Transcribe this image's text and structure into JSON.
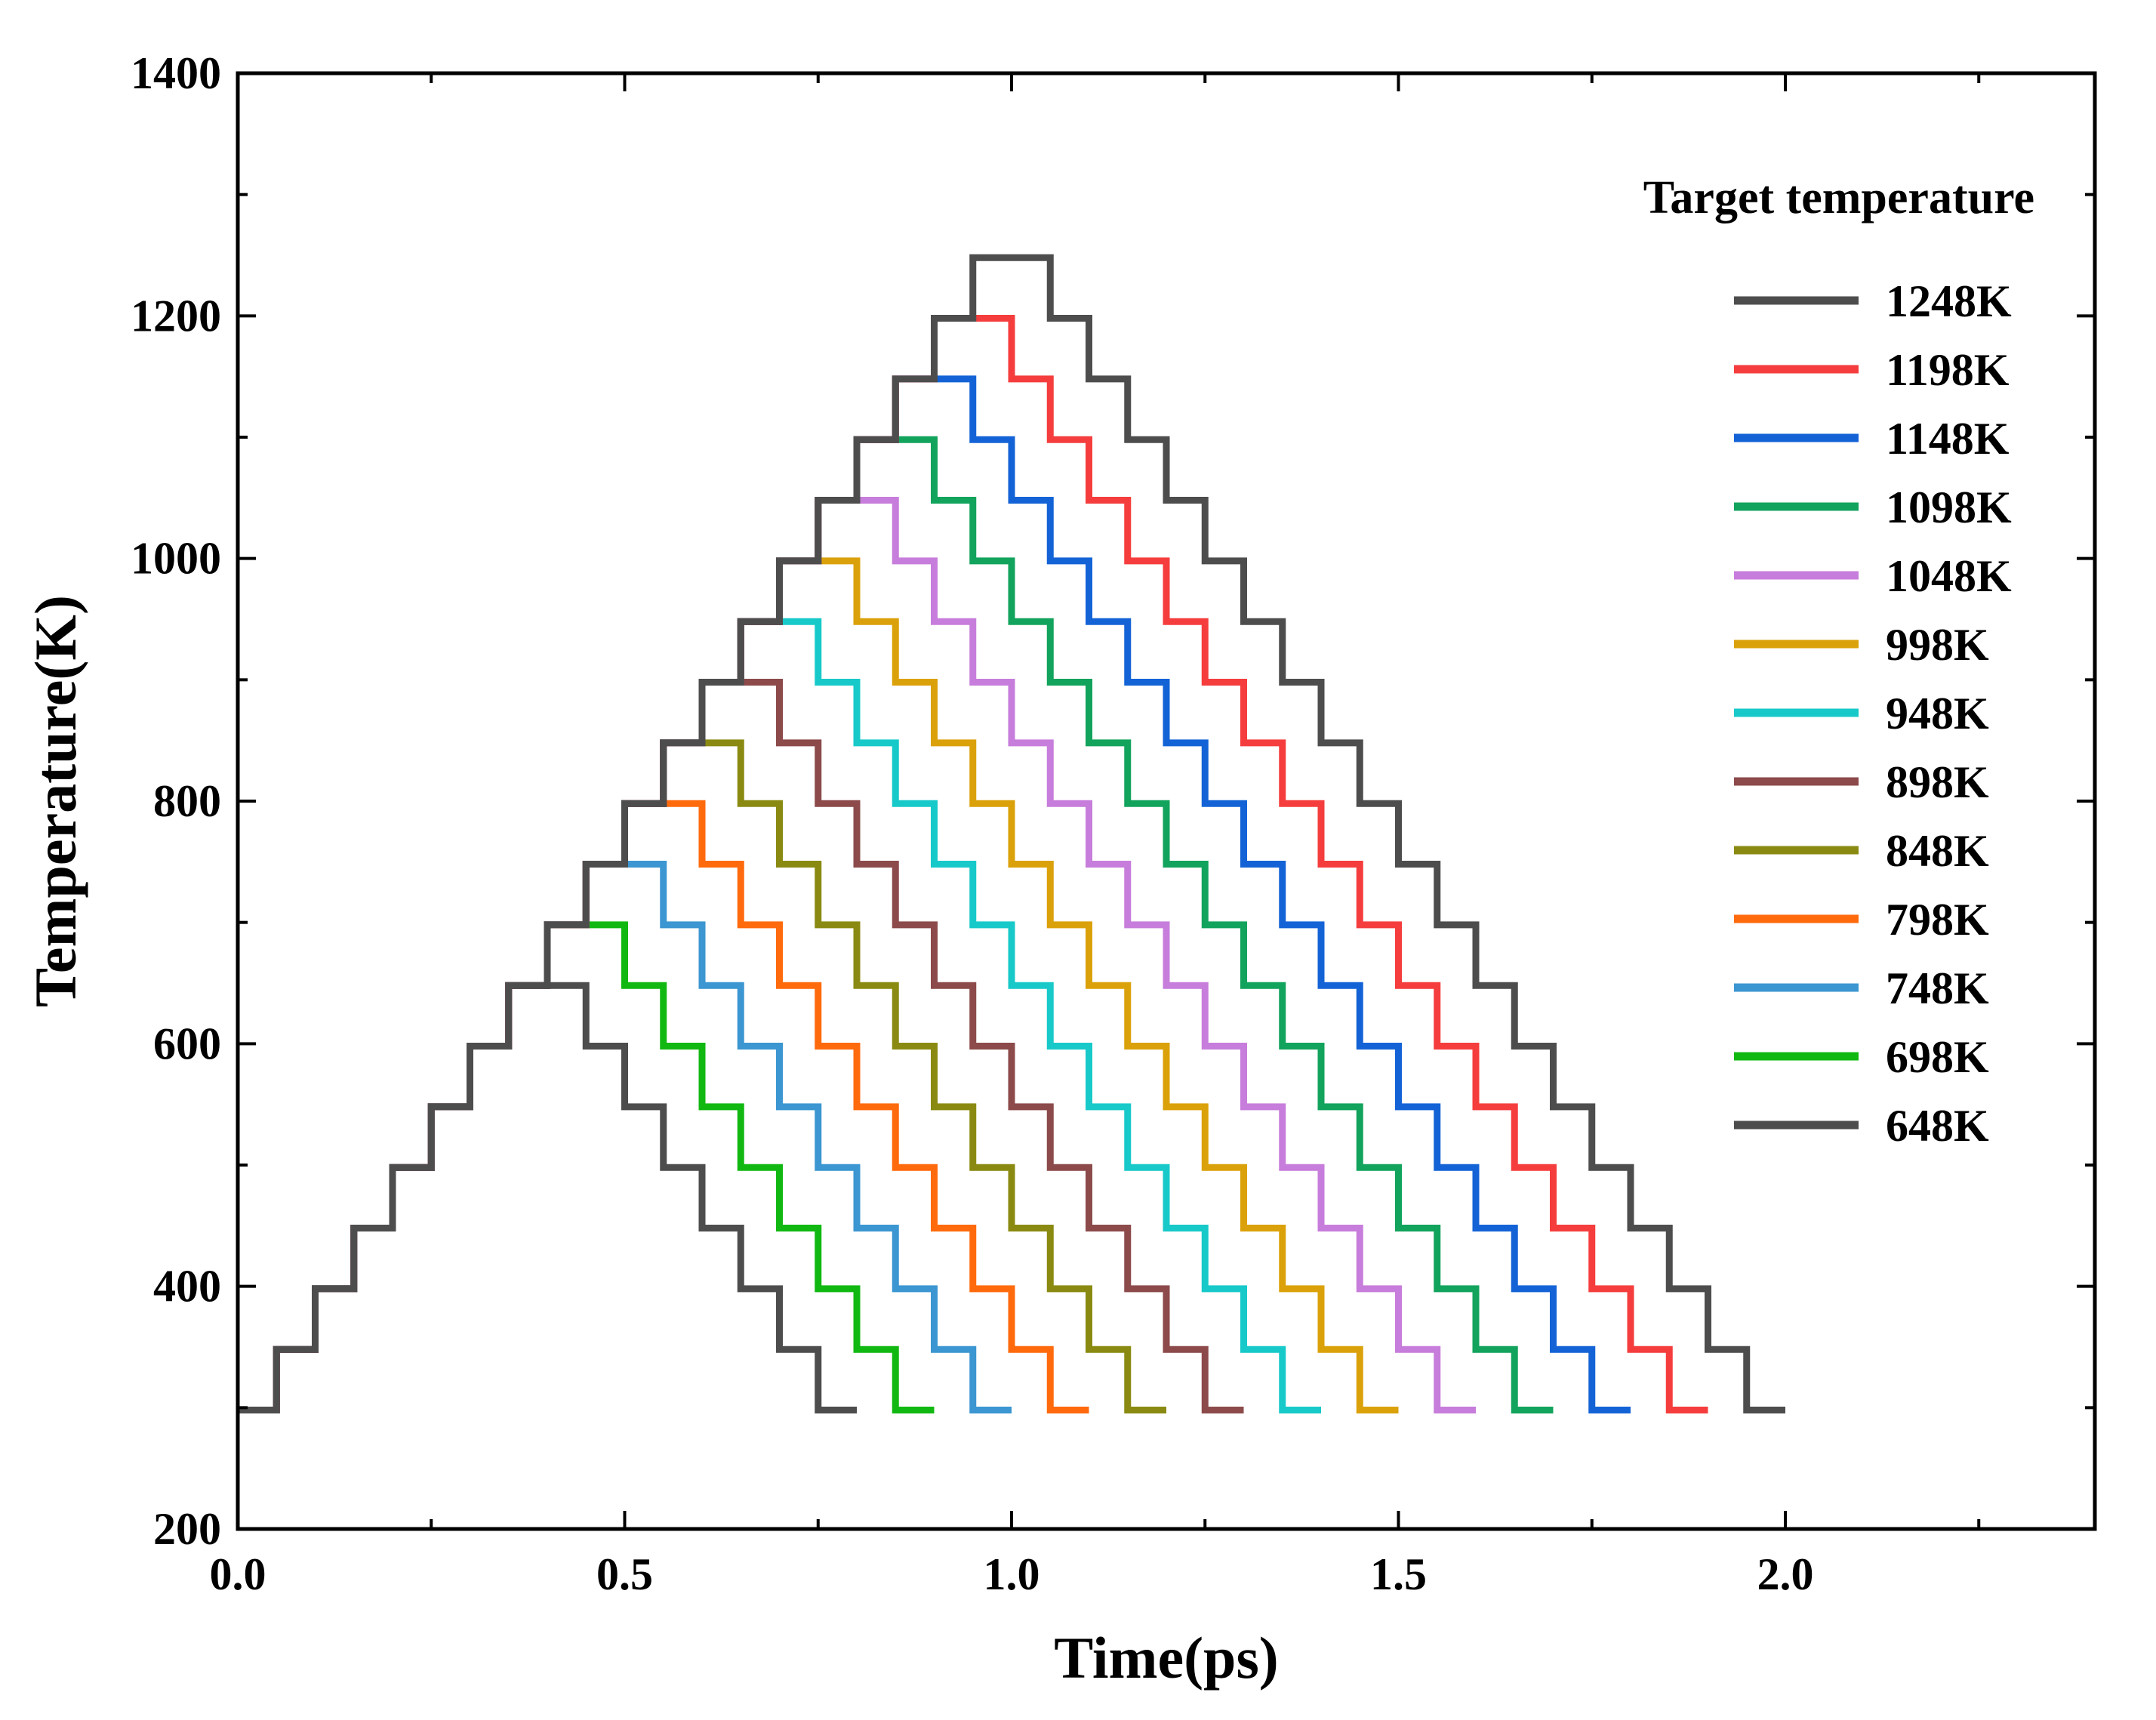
{
  "chart_data": {
    "type": "line",
    "title": "",
    "xlabel": "Time(ps)",
    "ylabel": "Temperature(K)",
    "xlim": [
      0.0,
      2.4
    ],
    "ylim": [
      200,
      1400
    ],
    "xticks": [
      0.0,
      0.5,
      1.0,
      1.5,
      2.0
    ],
    "xtick_labels": [
      "0.0",
      "0.5",
      "1.0",
      "1.5",
      "2.0"
    ],
    "yticks": [
      200,
      400,
      600,
      800,
      1000,
      1200,
      1400
    ],
    "ytick_labels": [
      "200",
      "400",
      "600",
      "800",
      "1000",
      "1200",
      "1400"
    ],
    "grid": false,
    "legend": {
      "title": "Target temperature",
      "position": "top-right"
    },
    "profile": {
      "start_temperature": 298,
      "step_temperature": 50,
      "step_duration": 0.05,
      "peak_hold_steps": 2,
      "note": "Each curve starts at 298 K at t=0, rises by 50 K every 0.05 ps to its target, holds the target for 0.1 ps, then falls by 50 K every 0.05 ps back to 298 K, which is held for 0.05 ps before the line ends."
    },
    "series": [
      {
        "name": "1248K",
        "target": 1248,
        "color": "#4d4d4d"
      },
      {
        "name": "1198K",
        "target": 1198,
        "color": "#f53d3d"
      },
      {
        "name": "1148K",
        "target": 1148,
        "color": "#1463d6"
      },
      {
        "name": "1098K",
        "target": 1098,
        "color": "#12a35c"
      },
      {
        "name": "1048K",
        "target": 1048,
        "color": "#c77ddb"
      },
      {
        "name": "998K",
        "target": 998,
        "color": "#dba10a"
      },
      {
        "name": "948K",
        "target": 948,
        "color": "#18c9c9"
      },
      {
        "name": "898K",
        "target": 898,
        "color": "#8c4a4a"
      },
      {
        "name": "848K",
        "target": 848,
        "color": "#8a8a12"
      },
      {
        "name": "798K",
        "target": 798,
        "color": "#ff6a0d"
      },
      {
        "name": "748K",
        "target": 748,
        "color": "#3b96d1"
      },
      {
        "name": "698K",
        "target": 698,
        "color": "#12b812"
      },
      {
        "name": "648K",
        "target": 648,
        "color": "#4d4d4d"
      }
    ]
  }
}
